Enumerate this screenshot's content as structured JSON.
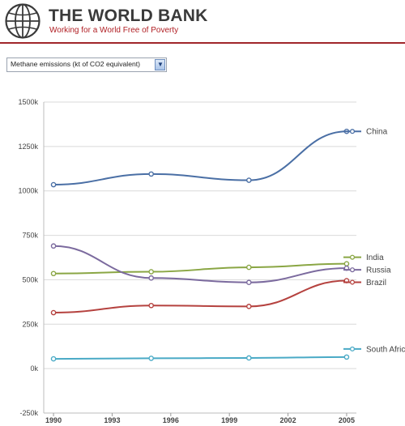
{
  "header": {
    "title": "THE WORLD BANK",
    "tagline": "Working for a World Free of Poverty"
  },
  "indicator_select": {
    "selected": "Methane emissions (kt of CO2 equivalent)",
    "icon": "chevron-down-icon"
  },
  "colors": {
    "brand_red": "#b01e23",
    "grid": "#d9d9d9"
  },
  "chart_data": {
    "type": "line",
    "x": [
      1990,
      1995,
      2000,
      2005
    ],
    "xlim": [
      1989.5,
      2005.5
    ],
    "x_tick_labels": [
      "1990",
      "1993",
      "1996",
      "1999",
      "2002",
      "2005"
    ],
    "y_tick_labels": [
      "1500k",
      "1250k",
      "1000k",
      "750k",
      "500k",
      "250k",
      "0k",
      "-250k"
    ],
    "ylim": [
      -250000,
      1500000
    ],
    "grid": true,
    "legend": "right, at line ends",
    "series": [
      {
        "name": "China",
        "color": "#4a6fa5",
        "values": [
          1035000,
          1095000,
          1060000,
          1335000
        ]
      },
      {
        "name": "India",
        "color": "#8aa644",
        "values": [
          535000,
          545000,
          570000,
          590000
        ]
      },
      {
        "name": "Russia",
        "color": "#7b6a9e",
        "values": [
          690000,
          510000,
          485000,
          565000
        ]
      },
      {
        "name": "Brazil",
        "color": "#b5423f",
        "values": [
          315000,
          355000,
          350000,
          495000
        ]
      },
      {
        "name": "South Africa",
        "color": "#4aaac6",
        "values": [
          55000,
          58000,
          60000,
          65000
        ]
      }
    ]
  }
}
